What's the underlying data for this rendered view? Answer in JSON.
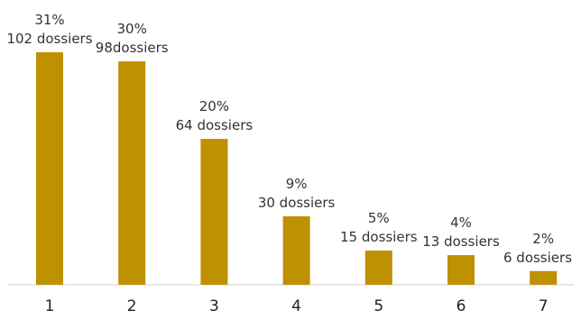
{
  "chart_data": {
    "type": "bar",
    "title": "",
    "xlabel": "",
    "ylabel": "",
    "categories": [
      "1",
      "2",
      "3",
      "4",
      "5",
      "6",
      "7"
    ],
    "values": [
      102,
      98,
      64,
      30,
      15,
      13,
      6
    ],
    "ylim": [
      0,
      102
    ],
    "grid": false,
    "bar_color": "#BF9000",
    "data_labels": [
      {
        "percent": "31%",
        "count": "102 dossiers"
      },
      {
        "percent": "30%",
        "count": "98dossiers"
      },
      {
        "percent": "20%",
        "count": "64 dossiers"
      },
      {
        "percent": "9%",
        "count": "30 dossiers"
      },
      {
        "percent": "5%",
        "count": "15 dossiers"
      },
      {
        "percent": "4%",
        "count": "13 dossiers"
      },
      {
        "percent": "2%",
        "count": "6 dossiers"
      }
    ]
  }
}
